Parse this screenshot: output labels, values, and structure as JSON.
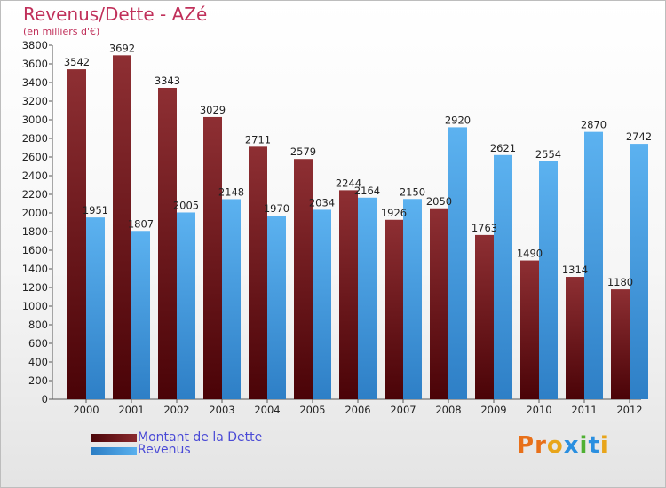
{
  "title": "Revenus/Dette - AZé",
  "subtitle": "(en milliers d'€)",
  "logo_text": "Proxiti",
  "colors": {
    "dette": "#6e0d12",
    "revenus": "#3e9ae0",
    "title": "#c0305a",
    "legend_text": "#4a4ad6"
  },
  "chart_data": {
    "type": "bar",
    "categories": [
      "2000",
      "2001",
      "2002",
      "2003",
      "2004",
      "2005",
      "2006",
      "2007",
      "2008",
      "2009",
      "2010",
      "2011",
      "2012"
    ],
    "series": [
      {
        "name": "Montant de la Dette",
        "values": [
          3542,
          3692,
          3343,
          3029,
          2711,
          2579,
          2244,
          1926,
          2050,
          1763,
          1490,
          1314,
          1180
        ]
      },
      {
        "name": "Revenus",
        "values": [
          1951,
          1807,
          2005,
          2148,
          1970,
          2034,
          2164,
          2150,
          2920,
          2621,
          2554,
          2870,
          2742
        ]
      }
    ],
    "y_ticks": [
      0,
      200,
      400,
      600,
      800,
      1000,
      1200,
      1400,
      1600,
      1800,
      2000,
      2200,
      2400,
      2600,
      2800,
      3000,
      3200,
      3400,
      3600,
      3800
    ],
    "ylim": [
      0,
      3800
    ],
    "grid": false,
    "legend_position": "bottom-left"
  }
}
